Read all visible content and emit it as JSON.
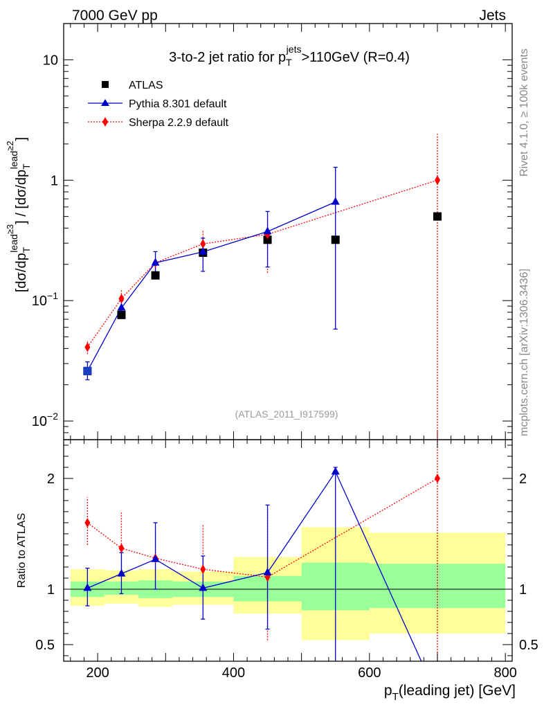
{
  "header": {
    "left": "7000 GeV pp",
    "right": "Jets",
    "side_top": "Rivet 4.1.0, ≥ 100k events",
    "side_bottom": "mcplots.cern.ch [arXiv:1306.3436]"
  },
  "chart_data": [
    {
      "type": "scatter",
      "title": "3-to-2 jet ratio for p_T^jets>110GeV (R=0.4)",
      "title_parts": {
        "a": "3-to-2 jet ratio for p",
        "sub": "T",
        "sup": "jets",
        "b": ">110GeV (R=0.4)"
      },
      "ylabel": "[dσ/dp_T^lead≥3] / [dσ/dp_T^lead≥2]",
      "ylabel_parts": {
        "open": "[dσ/dp",
        "sub": "T",
        "sup1": "lead",
        "sup2": "≥3",
        "mid": "] / [dσ/dp",
        "sup3": "lead",
        "sup4": "≥2",
        "close": "]"
      },
      "yscale": "log",
      "ylim": [
        0.007,
        20
      ],
      "xlim": [
        150,
        810
      ],
      "ytick_labels": [
        {
          "value": 0.01,
          "base": "10",
          "exp": "−2"
        },
        {
          "value": 0.1,
          "base": "10",
          "exp": "−1"
        },
        {
          "value": 1,
          "base": "1",
          "exp": ""
        },
        {
          "value": 10,
          "base": "10",
          "exp": ""
        }
      ],
      "watermark": "(ATLAS_2011_I917599)",
      "legend_position": "top-left",
      "series": [
        {
          "name": "ATLAS",
          "kind": "data",
          "color": "#000000",
          "marker": "square",
          "x": [
            185,
            235,
            285,
            355,
            450,
            550,
            700
          ],
          "y": [
            0.026,
            0.076,
            0.162,
            0.25,
            0.32,
            0.32,
            0.5
          ]
        },
        {
          "name": "Pythia 8.301 default",
          "kind": "line",
          "color": "#0000cc",
          "marker": "triangle",
          "x": [
            185,
            235,
            285,
            355,
            450,
            550
          ],
          "y": [
            0.026,
            0.087,
            0.206,
            0.254,
            0.375,
            0.66
          ],
          "ylow": [
            0.022,
            0.075,
            0.165,
            0.175,
            0.19,
            0.058
          ],
          "yhigh": [
            0.031,
            0.1,
            0.255,
            0.33,
            0.55,
            1.28
          ]
        },
        {
          "name": "Sherpa 2.2.9 default",
          "kind": "dotted",
          "color": "#ff0000",
          "marker": "diamond",
          "x": [
            185,
            235,
            285,
            355,
            450,
            700
          ],
          "y": [
            0.041,
            0.104,
            0.206,
            0.296,
            0.355,
            1.0
          ],
          "ylow": [
            0.036,
            0.091,
            0.175,
            0.255,
            0.17,
            0.006
          ],
          "yhigh": [
            0.047,
            0.123,
            0.245,
            0.38,
            0.55,
            2.42
          ]
        }
      ]
    },
    {
      "type": "scatter",
      "title": "",
      "ylabel": "Ratio to ATLAS",
      "xlabel": "p_T(leading jet) [GeV]",
      "xlabel_parts": {
        "a": "p",
        "sub": "T",
        "b": "(leading jet) [GeV]"
      },
      "yscale": "linear",
      "ylim": [
        0.35,
        2.35
      ],
      "xlim": [
        150,
        810
      ],
      "reference_line": 1,
      "ytick_labels": [
        {
          "value": 0.5,
          "label": "0.5"
        },
        {
          "value": 1,
          "label": "1"
        },
        {
          "value": 2,
          "label": "2"
        }
      ],
      "xtick_labels": [
        {
          "value": 200,
          "label": "200"
        },
        {
          "value": 400,
          "label": "400"
        },
        {
          "value": 600,
          "label": "600"
        },
        {
          "value": 800,
          "label": "800"
        }
      ],
      "bands": [
        {
          "x0": 160,
          "x1": 210,
          "outer": [
            0.85,
            1.18
          ],
          "inner": [
            0.93,
            1.07
          ]
        },
        {
          "x0": 210,
          "x1": 260,
          "outer": [
            0.87,
            1.17
          ],
          "inner": [
            0.95,
            1.07
          ]
        },
        {
          "x0": 260,
          "x1": 310,
          "outer": [
            0.84,
            1.18
          ],
          "inner": [
            0.92,
            1.08
          ]
        },
        {
          "x0": 310,
          "x1": 400,
          "outer": [
            0.86,
            1.16
          ],
          "inner": [
            0.93,
            1.07
          ]
        },
        {
          "x0": 400,
          "x1": 500,
          "outer": [
            0.78,
            1.29
          ],
          "inner": [
            0.89,
            1.12
          ]
        },
        {
          "x0": 500,
          "x1": 600,
          "outer": [
            0.54,
            1.56
          ],
          "inner": [
            0.81,
            1.24
          ]
        },
        {
          "x0": 600,
          "x1": 800,
          "outer": [
            0.6,
            1.51
          ],
          "inner": [
            0.83,
            1.23
          ]
        }
      ],
      "band_colors": {
        "outer": "#ffff99",
        "inner": "#99ff99"
      },
      "series": [
        {
          "name": "Pythia 8.301 default",
          "kind": "line",
          "color": "#0000cc",
          "marker": "triangle",
          "x": [
            185,
            235,
            285,
            355,
            450,
            550,
            680
          ],
          "y": [
            1.01,
            1.14,
            1.27,
            1.01,
            1.15,
            2.06,
            0.3
          ],
          "ylow": [
            0.85,
            0.96,
            1.0,
            0.73,
            0.64,
            0.3,
            null
          ],
          "yhigh": [
            1.19,
            1.33,
            1.6,
            1.3,
            1.76,
            2.1,
            null
          ]
        },
        {
          "name": "Sherpa 2.2.9 default",
          "kind": "dotted",
          "color": "#ff0000",
          "marker": "diamond",
          "x": [
            185,
            235,
            285,
            355,
            450,
            700
          ],
          "y": [
            1.6,
            1.37,
            1.28,
            1.18,
            1.11,
            2.0
          ],
          "ylow": [
            1.4,
            1.18,
            1.0,
            0.99,
            0.54,
            0.3
          ],
          "yhigh": [
            1.83,
            1.7,
            1.52,
            1.59,
            1.76,
            2.35
          ]
        }
      ],
      "curve_points": {
        "x": [
          185,
          235,
          285,
          355,
          450
        ],
        "y": [
          1.6,
          1.37,
          1.28,
          1.18,
          1.11
        ]
      }
    }
  ]
}
